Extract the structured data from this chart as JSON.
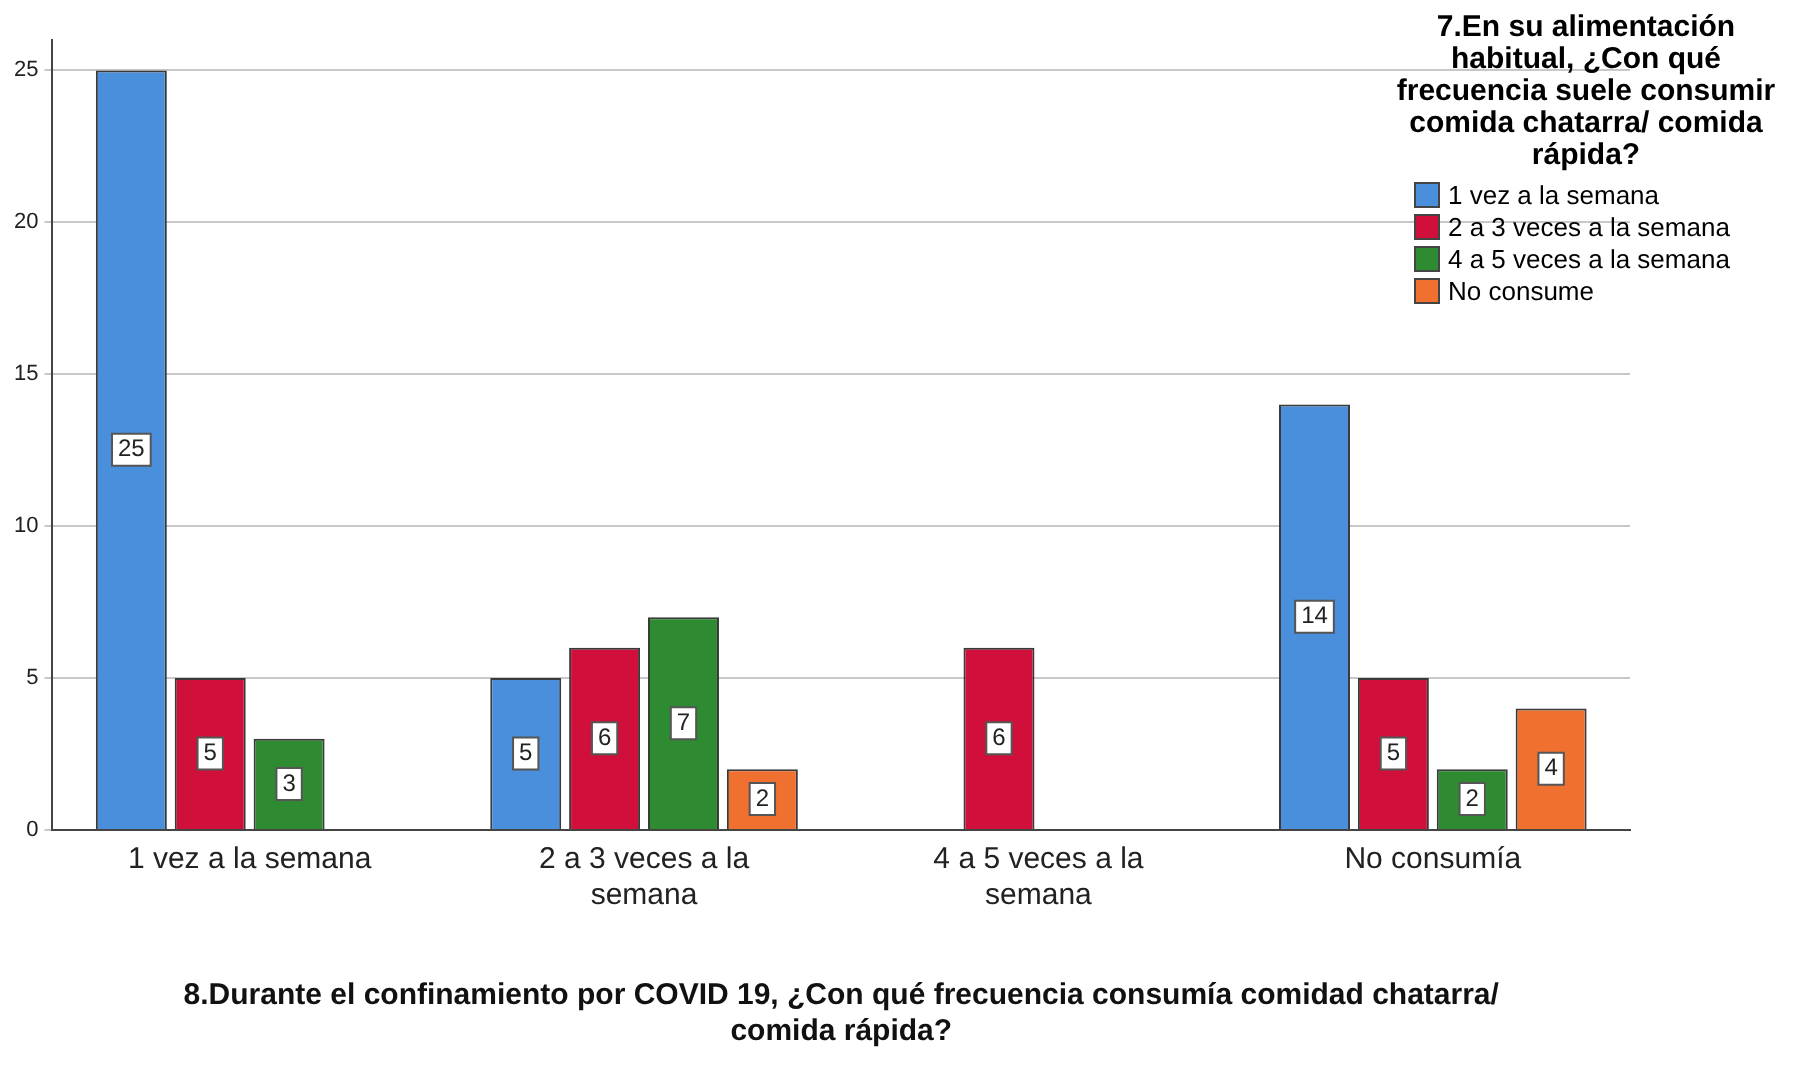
{
  "chart_data": {
    "type": "bar",
    "xlabel": "8.Durante el confinamiento por COVID 19, ¿Con qué frecuencia consumía comidad chatarra/ comida rápida?",
    "legend_title": "7.En su alimentación habitual, ¿Con qué frecuencia suele consumir comida chatarra/ comida rápida?",
    "categories": [
      "1 vez a la semana",
      "2 a 3 veces a la semana",
      "4 a 5 veces a la semana",
      "No consumía"
    ],
    "series": [
      {
        "name": "1 vez a la semana",
        "color": "#4a8fdc",
        "values": [
          25,
          5,
          null,
          14
        ]
      },
      {
        "name": "2 a 3 veces a la semana",
        "color": "#d0103a",
        "values": [
          5,
          6,
          6,
          5
        ]
      },
      {
        "name": "4 a 5 veces a la semana",
        "color": "#2e8b32",
        "values": [
          3,
          7,
          null,
          2
        ]
      },
      {
        "name": "No consume",
        "color": "#f07030",
        "values": [
          null,
          2,
          null,
          4
        ]
      }
    ],
    "ylim": [
      0,
      26
    ],
    "yticks": [
      0,
      5,
      10,
      15,
      20,
      25
    ],
    "grid": "y",
    "legend": "top right",
    "data_labels": true
  }
}
